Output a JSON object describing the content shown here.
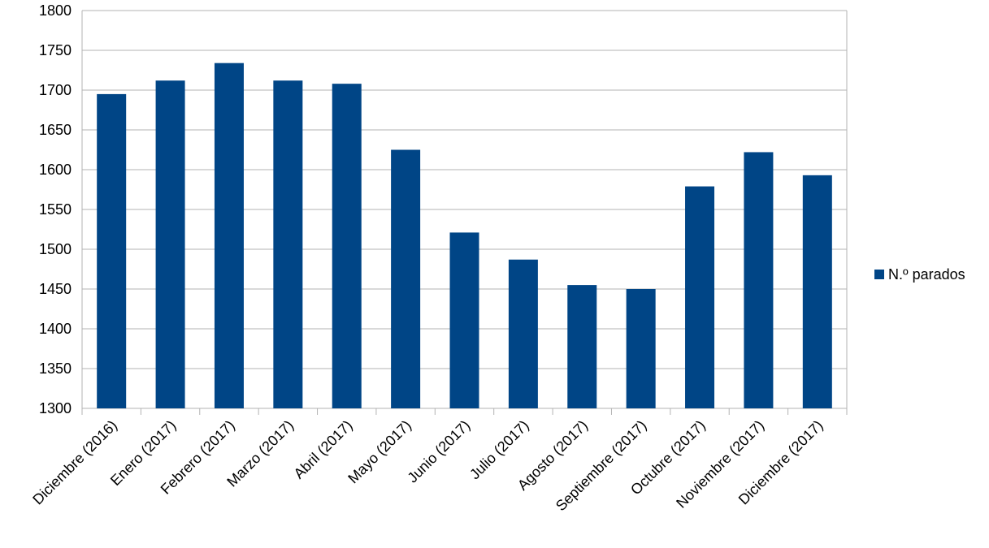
{
  "chart_data": {
    "type": "bar",
    "categories": [
      "Diciembre (2016)",
      "Enero (2017)",
      "Febrero (2017)",
      "Marzo (2017)",
      "Abril (2017)",
      "Mayo (2017)",
      "Junio (2017)",
      "Julio (2017)",
      "Agosto (2017)",
      "Septiembre (2017)",
      "Octubre (2017)",
      "Noviembre (2017)",
      "Diciembre (2017)"
    ],
    "series": [
      {
        "name": "N.º parados",
        "color": "#004586",
        "values": [
          1695,
          1712,
          1734,
          1712,
          1708,
          1625,
          1521,
          1487,
          1455,
          1450,
          1579,
          1622,
          1593
        ]
      }
    ],
    "ylim": [
      1300,
      1800
    ],
    "yticks": [
      1300,
      1350,
      1400,
      1450,
      1500,
      1550,
      1600,
      1650,
      1700,
      1750,
      1800
    ],
    "grid": true,
    "legend_position": "right"
  }
}
